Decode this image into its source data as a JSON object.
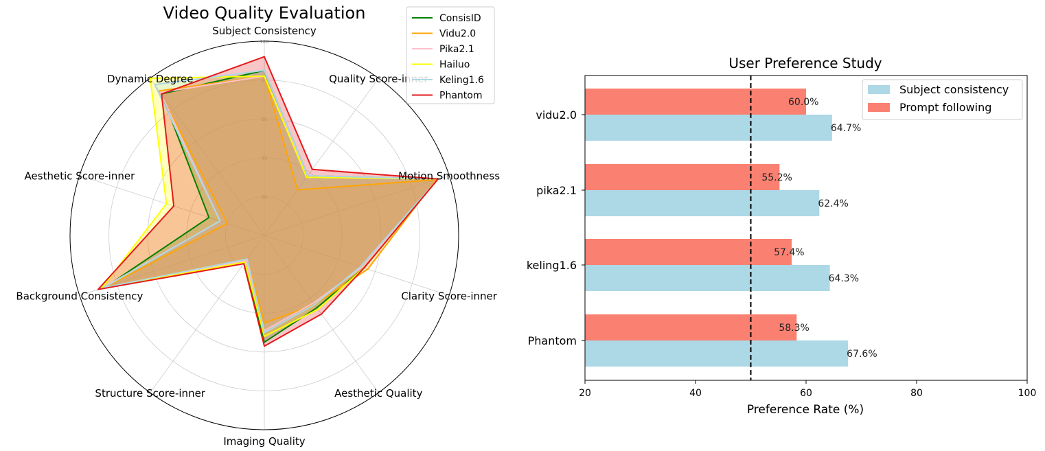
{
  "chart_data": [
    {
      "type": "radar",
      "title": "Video Quality Evaluation",
      "axes": [
        "Subject Consistency",
        "Quality Score-inner",
        "Motion Smoothness",
        "Clarity Score-inner",
        "Aesthetic Quality",
        "Imaging Quality",
        "Structure Score-inner",
        "Background Consistency",
        "Aesthetic Score-inner",
        "Dynamic Degree"
      ],
      "rlim": [
        0,
        100
      ],
      "rticks": [
        "20",
        "40",
        "60",
        "80",
        "100"
      ],
      "legend_position": "top-right",
      "series": [
        {
          "name": "ConsisID",
          "color": "#008000",
          "values": [
            85,
            38,
            94,
            54,
            46,
            55,
            17,
            86,
            30,
            90
          ]
        },
        {
          "name": "Vidu2.0",
          "color": "#ffa500",
          "values": [
            82,
            29,
            93,
            56,
            44,
            45,
            15,
            86,
            20,
            92
          ]
        },
        {
          "name": "Pika2.1",
          "color": "#ffc0cb",
          "values": [
            82,
            38,
            94,
            53,
            43,
            49,
            16,
            88,
            24,
            91
          ]
        },
        {
          "name": "Hailuo",
          "color": "#ffff00",
          "values": [
            82,
            37,
            94,
            54,
            47,
            52,
            17,
            88,
            53,
            100
          ]
        },
        {
          "name": "Keling1.6",
          "color": "#add8e6",
          "values": [
            85,
            38,
            94,
            52,
            44,
            50,
            15,
            87,
            24,
            96
          ]
        },
        {
          "name": "Phantom",
          "color": "#e31a1c",
          "values": [
            92,
            42,
            94,
            54,
            50,
            57,
            18,
            90,
            49,
            90
          ]
        }
      ]
    },
    {
      "type": "bar",
      "orientation": "horizontal",
      "title": "User Preference Study",
      "xlabel": "Preference Rate (%)",
      "ylabel": "",
      "xlim": [
        20,
        100
      ],
      "xticks": [
        "20",
        "40",
        "60",
        "80",
        "100"
      ],
      "reference_line": 50,
      "categories": [
        "vidu2.0",
        "pika2.1",
        "keling1.6",
        "Phantom"
      ],
      "legend_position": "top-right",
      "series": [
        {
          "name": "Subject consistency",
          "color": "#add8e6",
          "values": [
            64.7,
            62.4,
            64.3,
            67.6
          ],
          "labels": [
            "64.7%",
            "62.4%",
            "64.3%",
            "67.6%"
          ]
        },
        {
          "name": "Prompt following",
          "color": "#fa8072",
          "values": [
            60.0,
            55.2,
            57.4,
            58.3
          ],
          "labels": [
            "60.0%",
            "55.2%",
            "57.4%",
            "58.3%"
          ]
        }
      ]
    }
  ]
}
